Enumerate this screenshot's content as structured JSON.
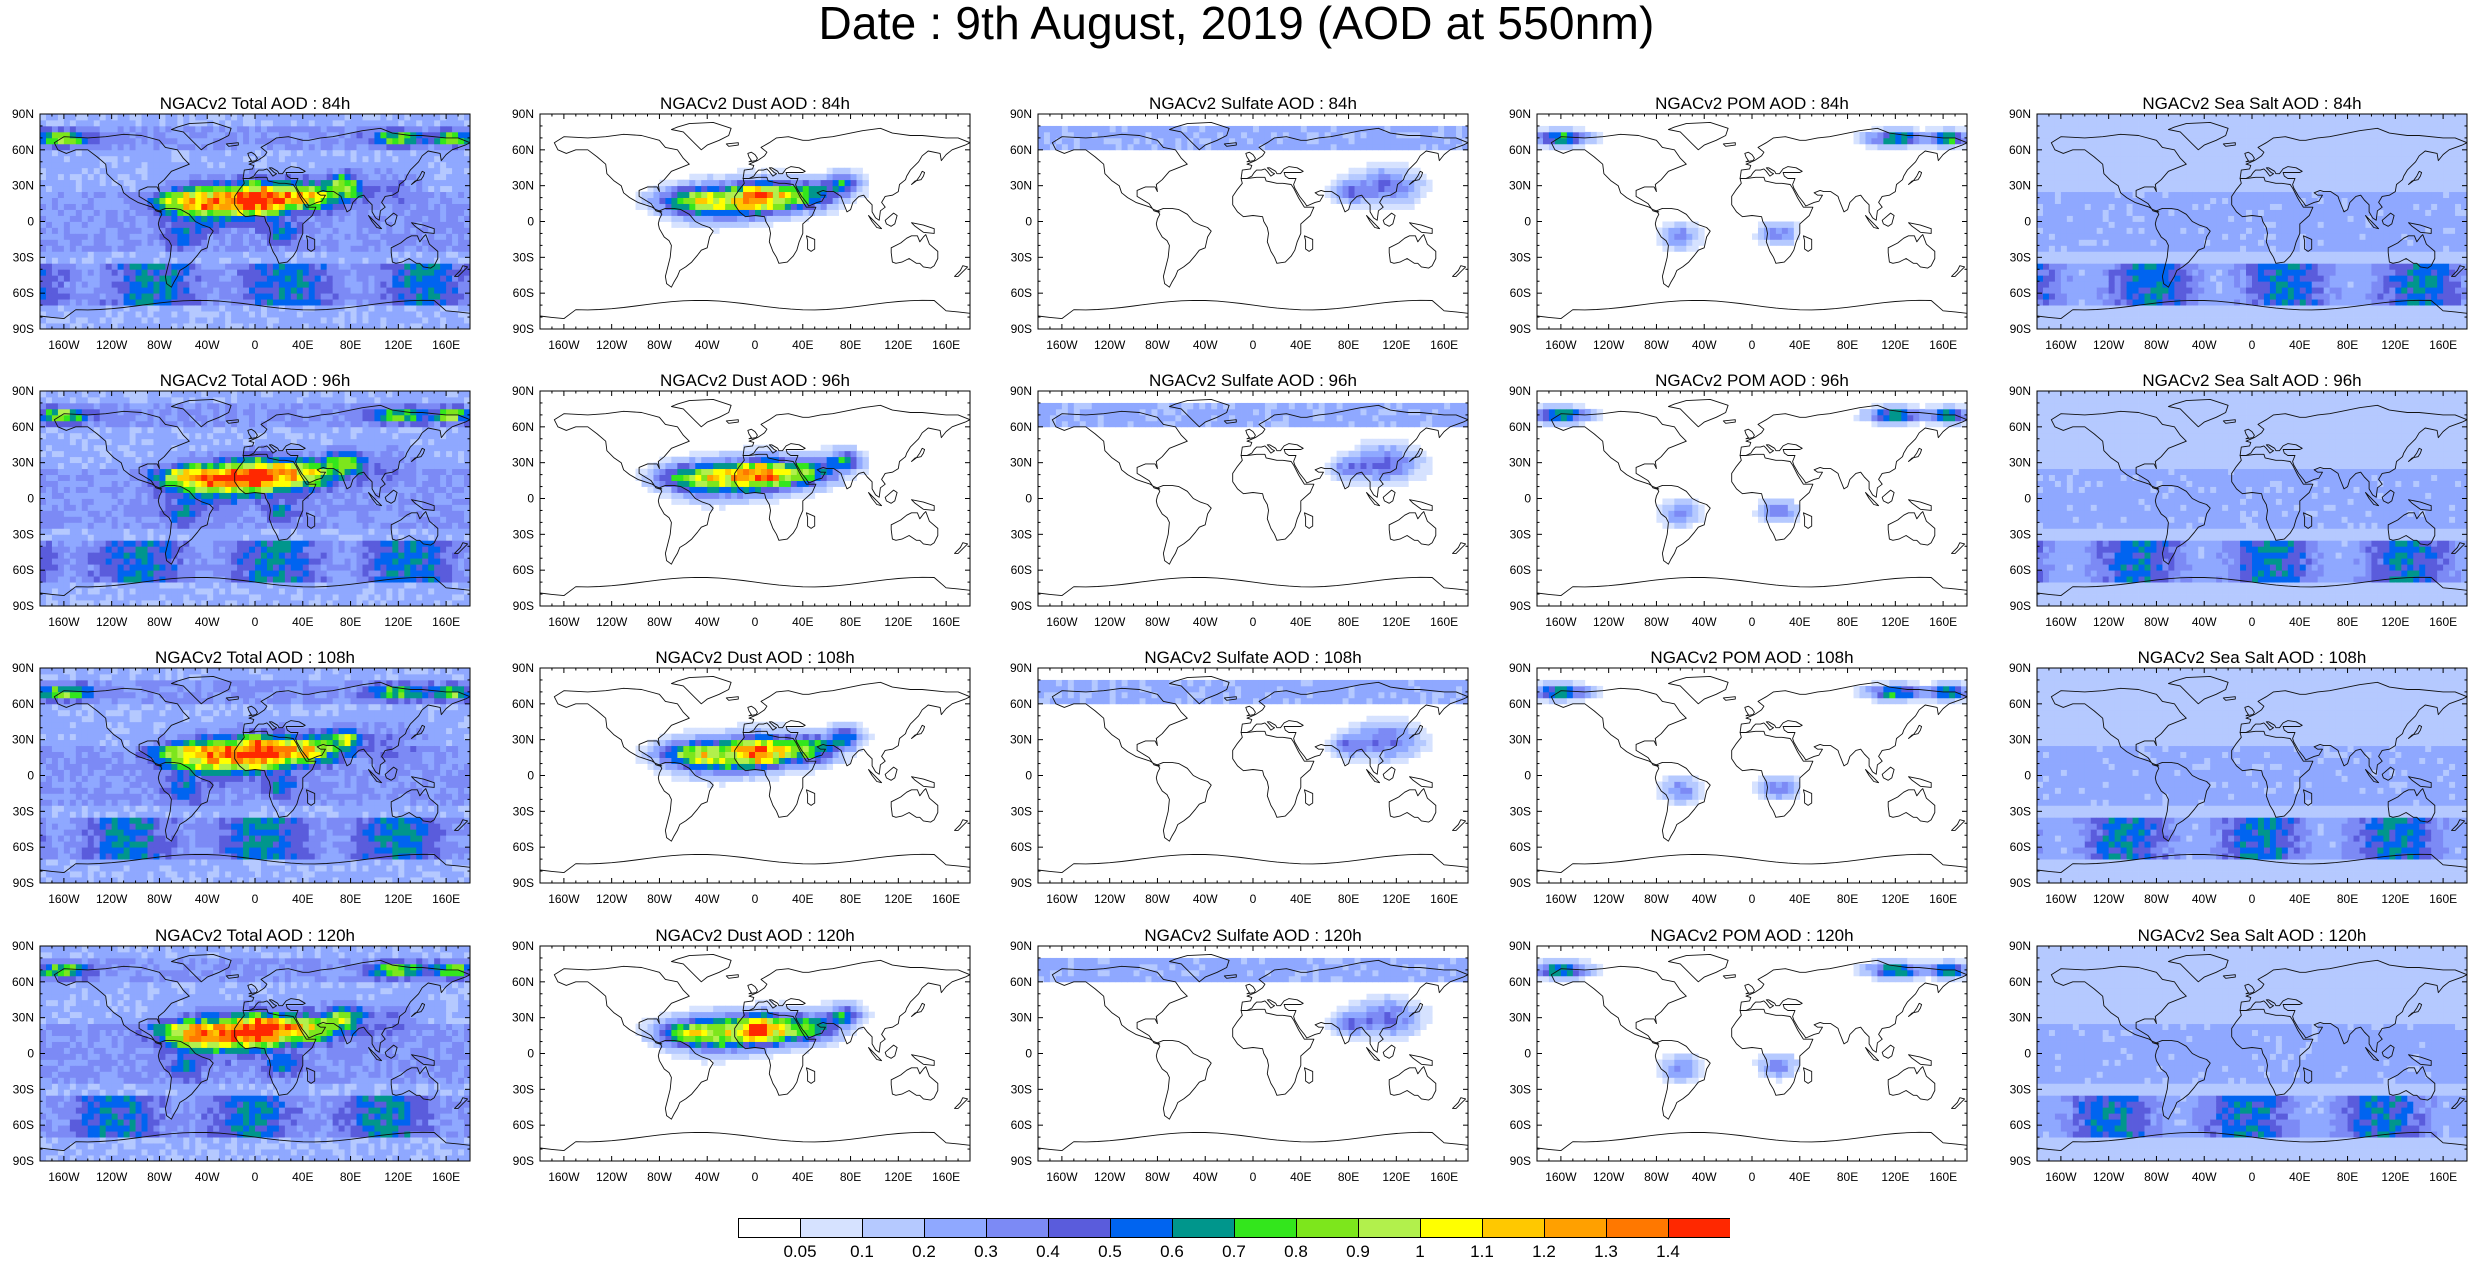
{
  "title": "Date : 9th August, 2019 (AOD at 550nm)",
  "axes": {
    "lat_ticks": [
      "90N",
      "60N",
      "30N",
      "0",
      "30S",
      "60S",
      "90S"
    ],
    "lon_ticks": [
      "160W",
      "120W",
      "80W",
      "40W",
      "0",
      "40E",
      "80E",
      "120E",
      "160E"
    ]
  },
  "panel_titles": [
    [
      "NGACv2 Total AOD : 84h",
      "NGACv2 Dust AOD : 84h",
      "NGACv2 Sulfate AOD : 84h",
      "NGACv2 POM AOD : 84h",
      "NGACv2 Sea Salt AOD : 84h"
    ],
    [
      "NGACv2 Total AOD : 96h",
      "NGACv2 Dust AOD : 96h",
      "NGACv2 Sulfate AOD : 96h",
      "NGACv2 POM AOD : 96h",
      "NGACv2 Sea Salt AOD : 96h"
    ],
    [
      "NGACv2 Total AOD : 108h",
      "NGACv2 Dust AOD : 108h",
      "NGACv2 Sulfate AOD : 108h",
      "NGACv2 POM AOD : 108h",
      "NGACv2 Sea Salt AOD : 108h"
    ],
    [
      "NGACv2 Total AOD : 120h",
      "NGACv2 Dust AOD : 120h",
      "NGACv2 Sulfate AOD : 120h",
      "NGACv2 POM AOD : 120h",
      "NGACv2 Sea Salt  AOD : 120h"
    ]
  ],
  "colorbar": {
    "labels": [
      "0.05",
      "0.1",
      "0.2",
      "0.3",
      "0.4",
      "0.5",
      "0.6",
      "0.7",
      "0.8",
      "0.9",
      "1",
      "1.1",
      "1.2",
      "1.3",
      "1.4"
    ],
    "colors": [
      "#ffffff",
      "#d6e2ff",
      "#b5c9ff",
      "#8fa8ff",
      "#7c8af5",
      "#5a5cdc",
      "#0064f0",
      "#00968c",
      "#33e61c",
      "#7de61c",
      "#b2f04c",
      "#ffff00",
      "#ffc800",
      "#ffa000",
      "#ff7800",
      "#ff2800"
    ]
  }
}
